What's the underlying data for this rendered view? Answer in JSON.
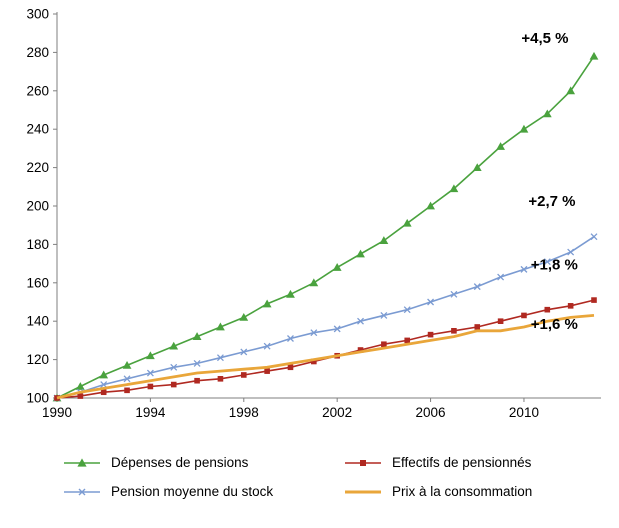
{
  "chart_data": {
    "type": "line",
    "title": "",
    "xlabel": "",
    "ylabel": "",
    "xlim": [
      1990,
      2013
    ],
    "ylim": [
      100,
      300
    ],
    "grid": false,
    "legend_position": "bottom",
    "x": [
      1990,
      1991,
      1992,
      1993,
      1994,
      1995,
      1996,
      1997,
      1998,
      1999,
      2000,
      2001,
      2002,
      2003,
      2004,
      2005,
      2006,
      2007,
      2008,
      2009,
      2010,
      2011,
      2012,
      2013
    ],
    "x_ticks": [
      1990,
      1994,
      1998,
      2002,
      2006,
      2010
    ],
    "y_ticks": [
      100,
      120,
      140,
      160,
      180,
      200,
      220,
      240,
      260,
      280,
      300
    ],
    "legend_order": [
      0,
      2,
      1,
      3
    ],
    "series": [
      {
        "name": "Dépenses de pensions",
        "slug": "depenses-de-pensions",
        "color": "#4aa23e",
        "marker": "triangle",
        "annotation": {
          "text": "+4,5 %",
          "at_x": 2010.9,
          "at_y": 285
        },
        "values": [
          100,
          106,
          112,
          117,
          122,
          127,
          132,
          137,
          142,
          149,
          154,
          160,
          168,
          175,
          182,
          191,
          200,
          209,
          220,
          231,
          240,
          248,
          260,
          278
        ]
      },
      {
        "name": "Pension moyenne du stock",
        "slug": "pension-moyenne-du-stock",
        "color": "#7b9bd2",
        "marker": "x",
        "annotation": {
          "text": "+2,7 %",
          "at_x": 2011.2,
          "at_y": 200
        },
        "values": [
          100,
          103,
          107,
          110,
          113,
          116,
          118,
          121,
          124,
          127,
          131,
          134,
          136,
          140,
          143,
          146,
          150,
          154,
          158,
          163,
          167,
          171,
          176,
          184
        ]
      },
      {
        "name": "Effectifs de pensionnés",
        "slug": "effectifs-de-pensionnes",
        "color": "#b02921",
        "marker": "square",
        "annotation": {
          "text": "+1,8 %",
          "at_x": 2011.3,
          "at_y": 167
        },
        "values": [
          100,
          101,
          103,
          104,
          106,
          107,
          109,
          110,
          112,
          114,
          116,
          119,
          122,
          125,
          128,
          130,
          133,
          135,
          137,
          140,
          143,
          146,
          148,
          151
        ]
      },
      {
        "name": "Prix à la consommation",
        "slug": "prix-a-la-consommation",
        "color": "#e9a63a",
        "marker": "none",
        "annotation": {
          "text": "+1,6 %",
          "at_x": 2011.3,
          "at_y": 136
        },
        "values": [
          100,
          103,
          105,
          107,
          109,
          111,
          113,
          114,
          115,
          116,
          118,
          120,
          122,
          124,
          126,
          128,
          130,
          132,
          135,
          135,
          137,
          140,
          142,
          143
        ]
      }
    ]
  }
}
